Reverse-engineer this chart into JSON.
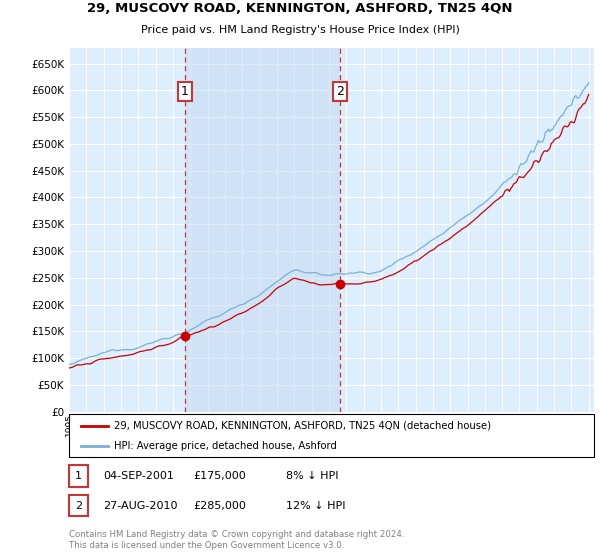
{
  "title": "29, MUSCOVY ROAD, KENNINGTON, ASHFORD, TN25 4QN",
  "subtitle": "Price paid vs. HM Land Registry's House Price Index (HPI)",
  "ylim": [
    0,
    680000
  ],
  "yticks": [
    0,
    50000,
    100000,
    150000,
    200000,
    250000,
    300000,
    350000,
    400000,
    450000,
    500000,
    550000,
    600000,
    650000
  ],
  "sale1_date": 2001.67,
  "sale1_price": 175000,
  "sale1_label": "1",
  "sale2_date": 2010.65,
  "sale2_price": 285000,
  "sale2_label": "2",
  "legend_line1": "29, MUSCOVY ROAD, KENNINGTON, ASHFORD, TN25 4QN (detached house)",
  "legend_line2": "HPI: Average price, detached house, Ashford",
  "footer": "Contains HM Land Registry data © Crown copyright and database right 2024.\nThis data is licensed under the Open Government Licence v3.0.",
  "color_red": "#cc0000",
  "color_blue": "#7ab0d4",
  "bg_chart": "#ddeeff",
  "shade_color": "#c8ddf0",
  "grid_color": "#ffffff",
  "box_color": "#cc3333"
}
